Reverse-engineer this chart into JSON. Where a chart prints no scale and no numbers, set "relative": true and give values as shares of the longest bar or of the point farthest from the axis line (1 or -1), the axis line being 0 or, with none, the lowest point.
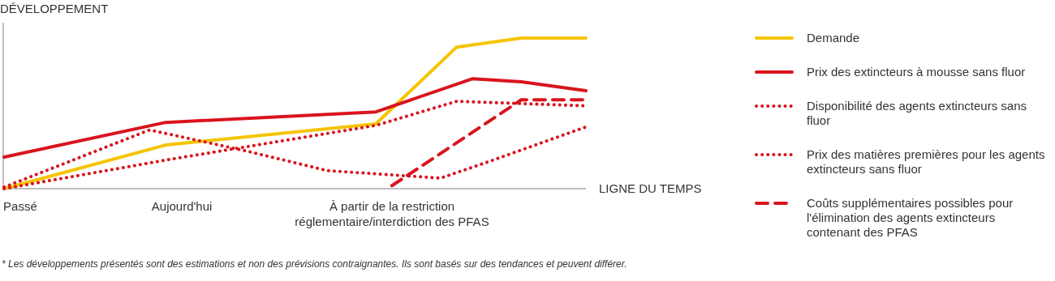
{
  "chart_data": {
    "type": "line",
    "relative": true,
    "ylabel": "DÉVELOPPEMENT",
    "xlabel": "LIGNE DU TEMPS",
    "categories": [
      null,
      "Passé",
      null,
      null,
      null,
      null,
      null,
      null,
      null,
      null,
      null,
      "Aujourd'hui",
      null,
      null,
      null,
      null,
      null,
      null,
      null,
      null,
      null,
      null,
      null,
      null,
      "À partir de la restriction réglementaire/interdiction des PFAS",
      null,
      null,
      null,
      null,
      null,
      null,
      null,
      null,
      null,
      null,
      null,
      null
    ],
    "legend": "right",
    "marker": "none",
    "series": [
      {
        "name": "Demande",
        "color": "#f5c400",
        "line_style": "solid",
        "values": [
          0,
          null,
          null,
          null,
          null,
          null,
          null,
          null,
          null,
          null,
          0.29,
          null,
          null,
          null,
          null,
          null,
          null,
          null,
          null,
          null,
          null,
          null,
          null,
          0.43,
          null,
          null,
          null,
          null,
          0.94,
          null,
          null,
          null,
          1,
          null,
          null,
          null,
          1
        ]
      },
      {
        "name": "Prix des extincteurs à mousse sans fluor",
        "color": "#d9141e",
        "line_style": "solid",
        "values": [
          0.21,
          null,
          null,
          null,
          null,
          null,
          null,
          null,
          null,
          null,
          0.44,
          null,
          null,
          null,
          null,
          null,
          null,
          null,
          null,
          null,
          null,
          null,
          null,
          0.51,
          null,
          null,
          null,
          null,
          null,
          0.73,
          null,
          null,
          0.71,
          null,
          null,
          null,
          0.65
        ]
      },
      {
        "name": "Disponibilité des agents extincteurs sans fluor",
        "color": "#d9141e",
        "line_style": "dotted",
        "values": [
          0.01,
          null,
          null,
          null,
          null,
          null,
          null,
          null,
          null,
          0.39,
          null,
          null,
          null,
          null,
          null,
          0.25,
          null,
          null,
          null,
          null,
          0.12,
          null,
          null,
          null,
          null,
          null,
          null,
          0.07,
          null,
          null,
          0.18,
          null,
          null,
          null,
          null,
          null,
          0.41
        ]
      },
      {
        "name": "Prix des matières premières pour les agents extincteurs sans fluor",
        "color": "#d9141e",
        "line_style": "dotted",
        "values": [
          0,
          null,
          null,
          null,
          null,
          null,
          null,
          null,
          null,
          null,
          0.19,
          null,
          null,
          null,
          null,
          null,
          null,
          null,
          null,
          null,
          null,
          null,
          null,
          0.42,
          null,
          null,
          null,
          null,
          0.58,
          null,
          null,
          null,
          null,
          null,
          null,
          null,
          0.55
        ]
      },
      {
        "name": "Coûts supplémentaires possibles pour l'élimination des agents extincteurs contenant des PFAS",
        "color": "#d9141e",
        "line_style": "dashed",
        "values": [
          null,
          null,
          null,
          null,
          null,
          null,
          null,
          null,
          null,
          null,
          null,
          null,
          null,
          null,
          null,
          null,
          null,
          null,
          null,
          null,
          null,
          null,
          null,
          null,
          0.02,
          null,
          null,
          null,
          null,
          null,
          null,
          null,
          0.59,
          null,
          null,
          null,
          0.59
        ]
      }
    ],
    "annotations": [
      "* Les développements présentés sont des estimations et non des prévisions contraignantes. Ils sont basés sur des tendances et peuvent différer."
    ]
  }
}
